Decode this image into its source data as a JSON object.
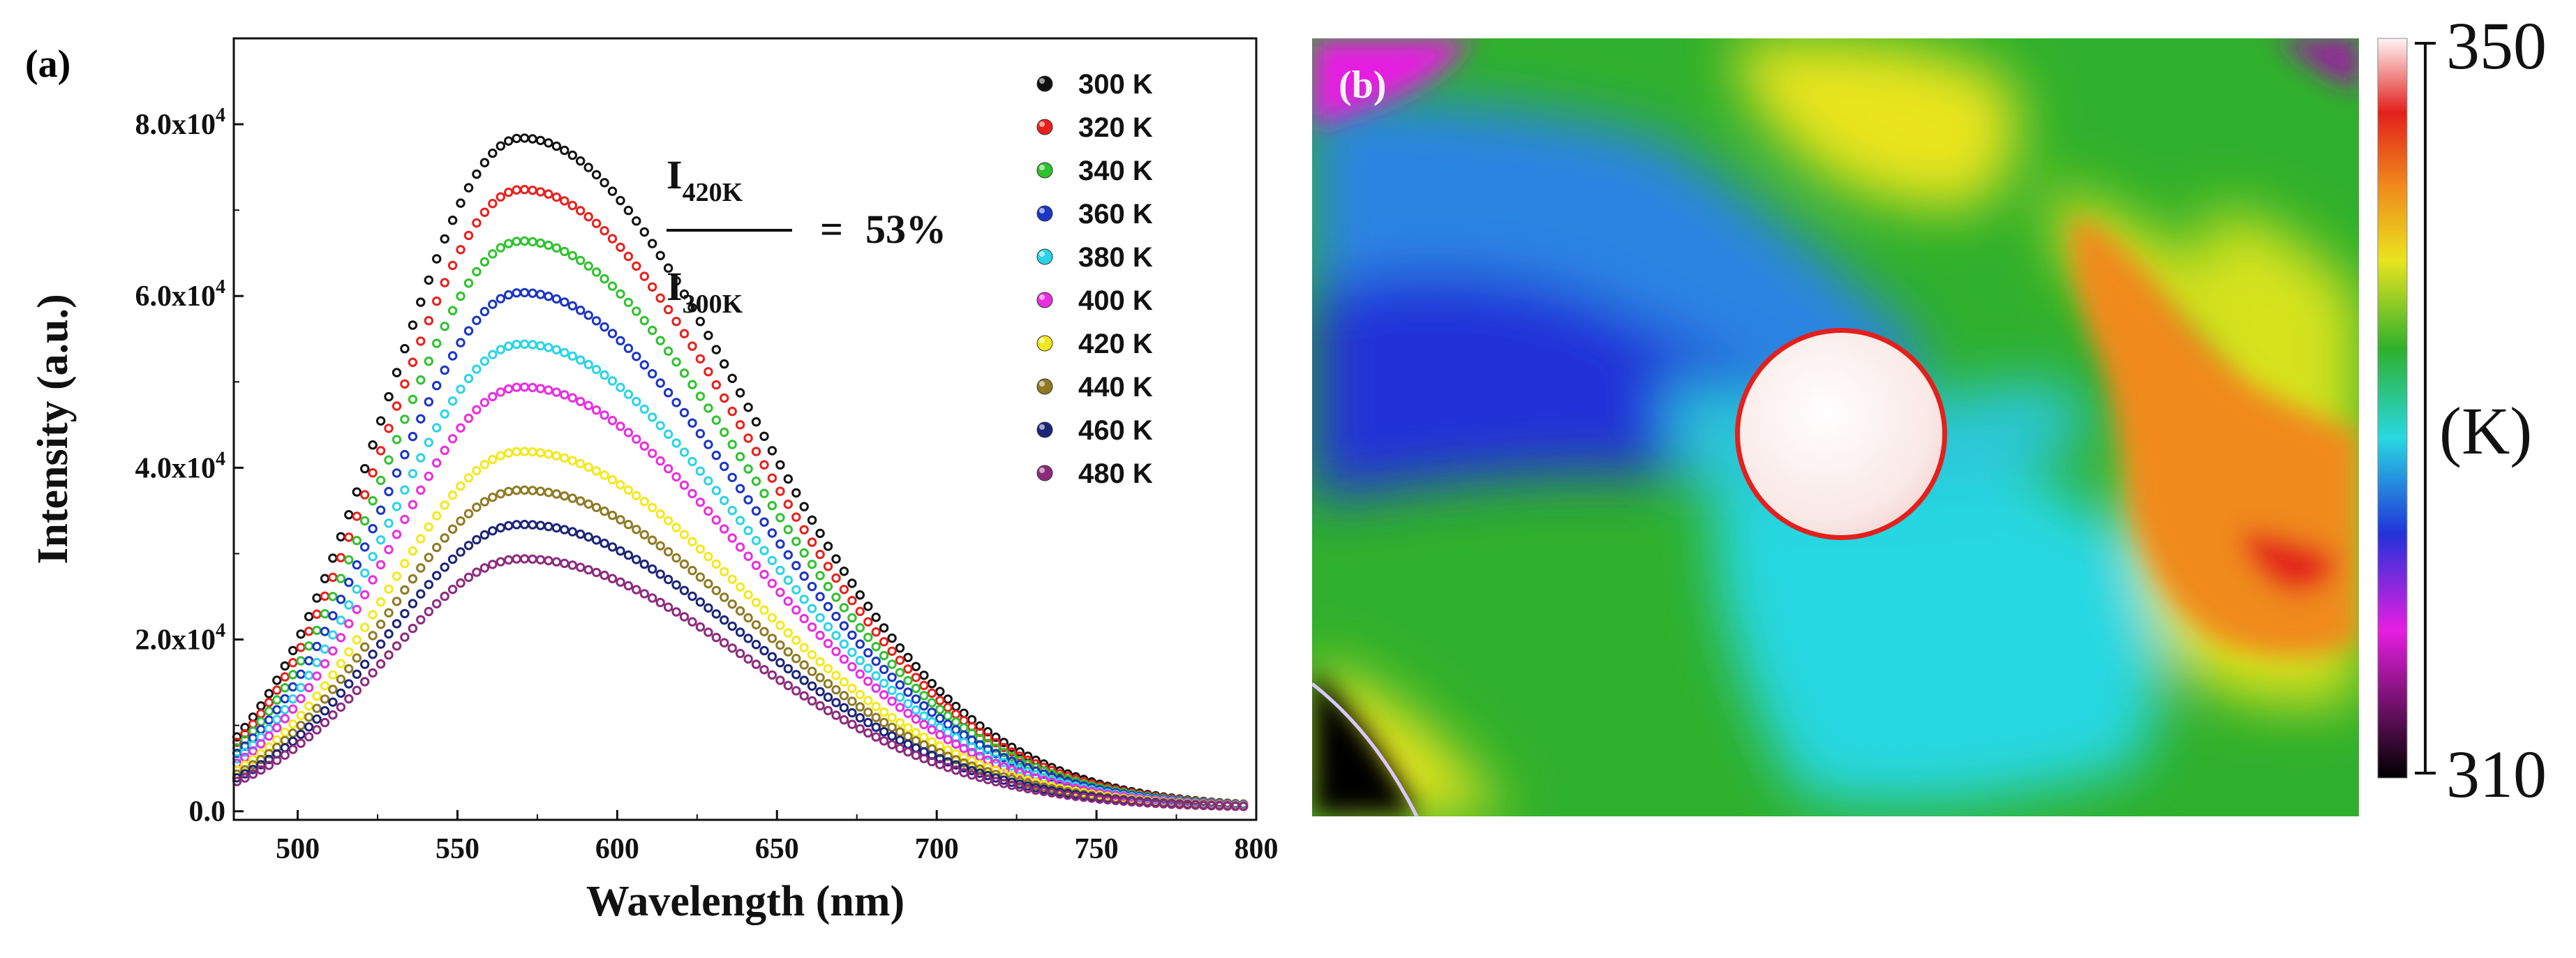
{
  "chart_data": [
    {
      "type": "scatter",
      "panel_label": "(a)",
      "xlabel": "Wavelength (nm)",
      "ylabel": "Intensity (a.u.)",
      "xlim": [
        480,
        800
      ],
      "ylim": [
        -1000,
        90000
      ],
      "x_ticks": [
        500,
        550,
        600,
        650,
        700,
        750,
        800
      ],
      "y_ticks": [
        {
          "value": 0,
          "label": "0.0"
        },
        {
          "value": 20000,
          "mantissa": "2.0x10",
          "exp": "4"
        },
        {
          "value": 40000,
          "mantissa": "4.0x10",
          "exp": "4"
        },
        {
          "value": 60000,
          "mantissa": "6.0x10",
          "exp": "4"
        },
        {
          "value": 80000,
          "mantissa": "8.0x10",
          "exp": "4"
        }
      ],
      "peak_wavelength": 570,
      "annotation": {
        "numerator_main": "I",
        "numerator_sub": "420K",
        "denominator_main": "I",
        "denominator_sub": "300K",
        "equals": "=",
        "value": "53%"
      },
      "legend_position": "top-right",
      "series": [
        {
          "name": "300 K",
          "peak": 78000,
          "color": "#111111"
        },
        {
          "name": "320 K",
          "peak": 72000,
          "color": "#e8201c"
        },
        {
          "name": "340 K",
          "peak": 66000,
          "color": "#2ec22e"
        },
        {
          "name": "360 K",
          "peak": 60000,
          "color": "#1b35c4"
        },
        {
          "name": "380 K",
          "peak": 54000,
          "color": "#2ad3e8"
        },
        {
          "name": "400 K",
          "peak": 49000,
          "color": "#e72ee0"
        },
        {
          "name": "420 K",
          "peak": 41500,
          "color": "#f4e81c"
        },
        {
          "name": "440 K",
          "peak": 37000,
          "color": "#8f7a23"
        },
        {
          "name": "460 K",
          "peak": 33000,
          "color": "#1a2478"
        },
        {
          "name": "480 K",
          "peak": 29000,
          "color": "#8d2a7e"
        }
      ]
    },
    {
      "type": "heatmap",
      "panel_label": "(b)",
      "colorbar": {
        "max_label": "350",
        "min_label": "310",
        "unit_label": "(K)",
        "range": [
          310,
          350
        ]
      },
      "colors": {
        "cold": "#000000",
        "magenta": "#e61ee1",
        "blue": "#2233d8",
        "cyan": "#28d8e2",
        "green": "#2fb02c",
        "yellow": "#e9e41e",
        "orange": "#f08a1c",
        "red": "#e3201c",
        "hot": "#fff4f4"
      }
    }
  ]
}
